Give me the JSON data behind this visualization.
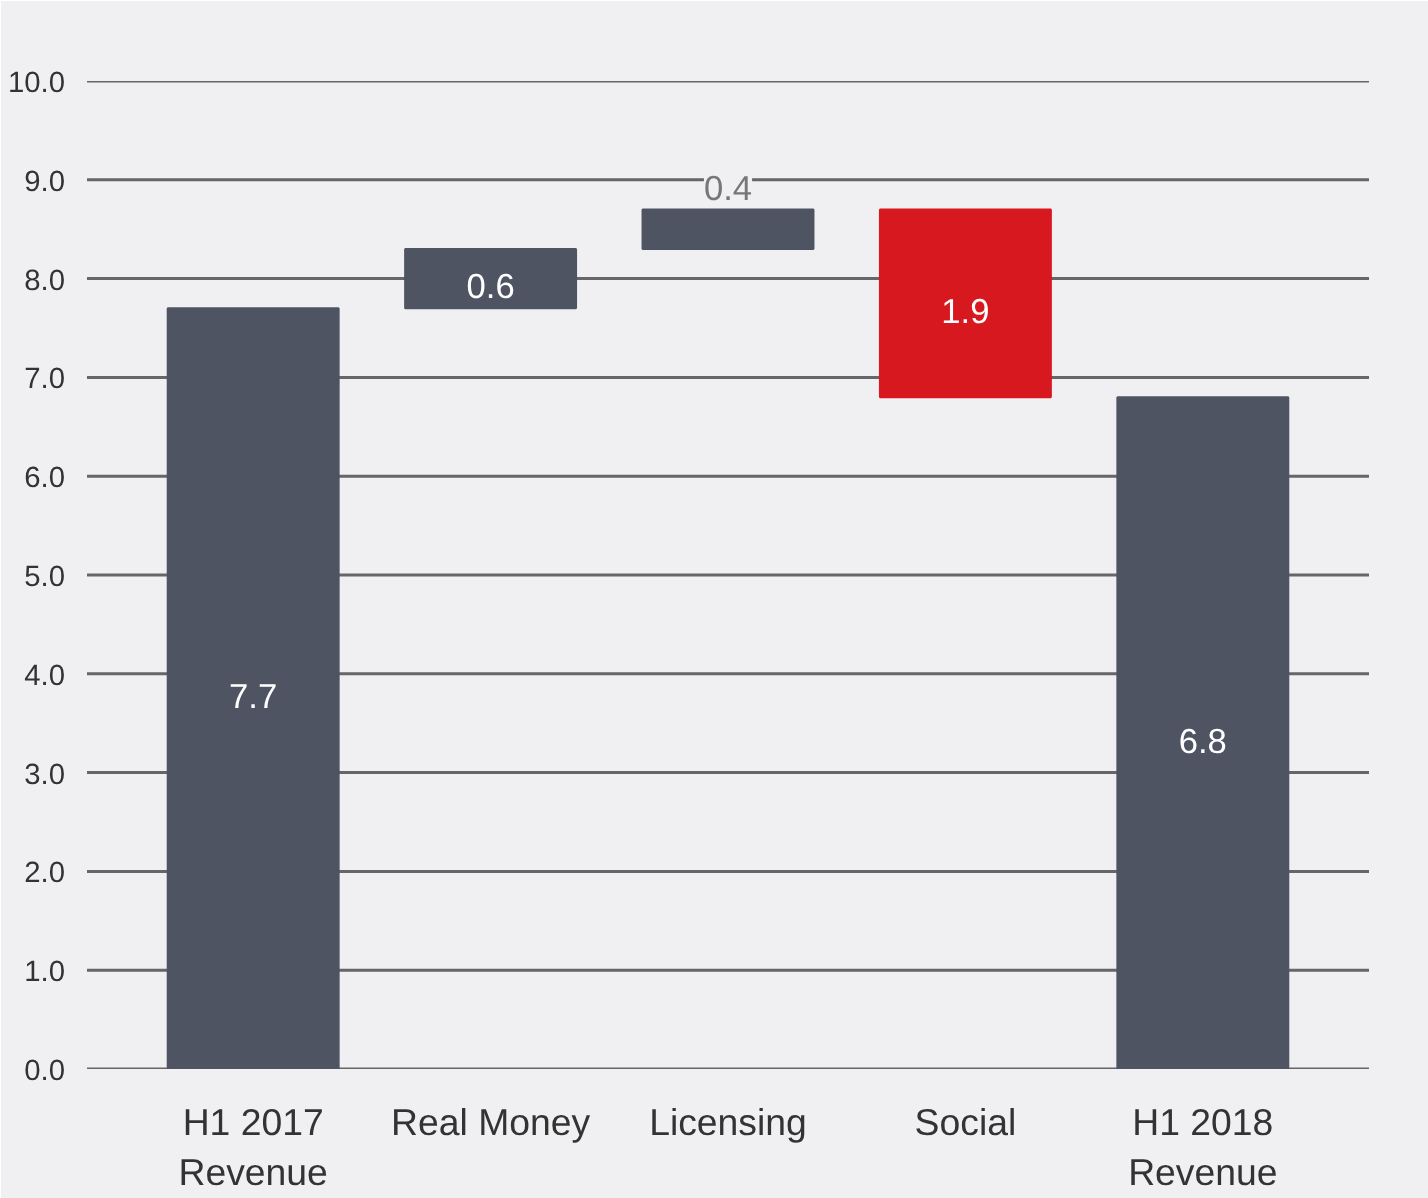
{
  "chart_data": {
    "type": "bar",
    "categories": [
      "H1 2017\nRevenue",
      "Real Money",
      "Licensing",
      "Social",
      "H1 2018\nRevenue"
    ],
    "values": [
      7.7,
      0.6,
      0.4,
      -1.9,
      6.8
    ],
    "base": [
      0,
      7.7,
      8.3,
      8.7,
      0
    ],
    "colors": [
      "#4f5463",
      "#4f5463",
      "#4f5463",
      "#d7191f",
      "#4f5463"
    ],
    "value_labels": [
      "7.7",
      "0.6",
      "0.4",
      "1.9",
      "6.8"
    ],
    "ylim": [
      0,
      10
    ],
    "yticks": [
      {
        "value": 0,
        "label": "0.0"
      },
      {
        "value": 1,
        "label": "1.0"
      },
      {
        "value": 2,
        "label": "2.0"
      },
      {
        "value": 3,
        "label": "3.0"
      },
      {
        "value": 4,
        "label": "4.0"
      },
      {
        "value": 5,
        "label": "5.0"
      },
      {
        "value": 6,
        "label": "6.0"
      },
      {
        "value": 7,
        "label": "7.0"
      },
      {
        "value": 8,
        "label": "8.0"
      },
      {
        "value": 9,
        "label": "9.0"
      },
      {
        "value": 10,
        "label": "10.0"
      }
    ],
    "grid": "y"
  }
}
